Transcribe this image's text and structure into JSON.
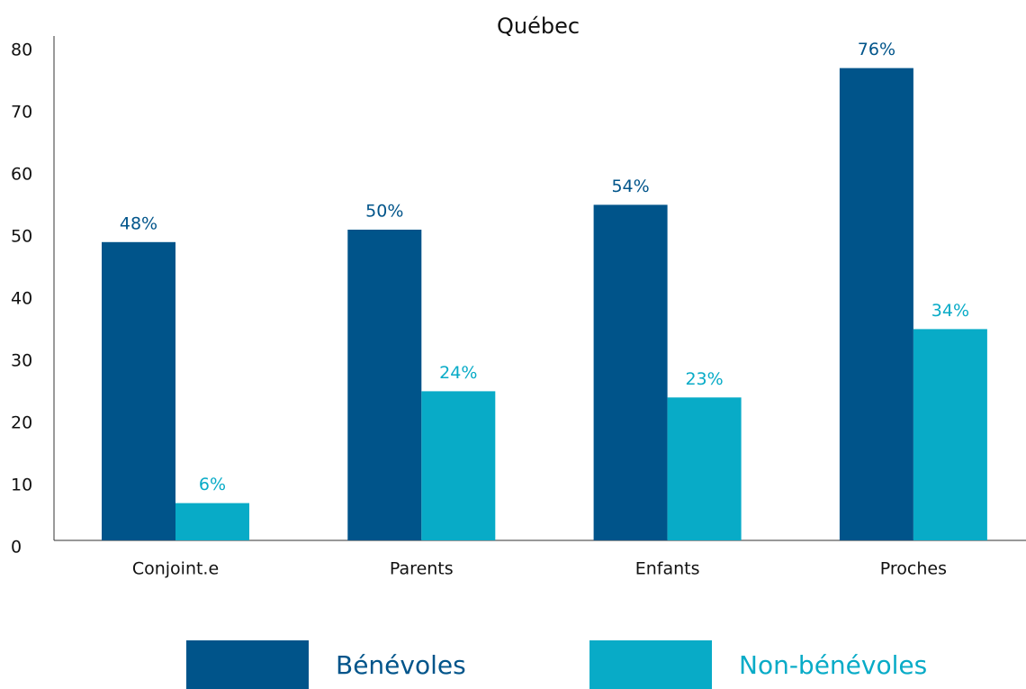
{
  "chart_data": {
    "type": "bar",
    "title": "Québec",
    "categories": [
      "Conjoint.e",
      "Parents",
      "Enfants",
      "Proches"
    ],
    "series": [
      {
        "name": "Bénévoles",
        "color": "#00548a",
        "values": [
          48,
          50,
          54,
          76
        ],
        "value_labels": [
          "48%",
          "50%",
          "54%",
          "76%"
        ]
      },
      {
        "name": "Non-bénévoles",
        "color": "#08abc7",
        "values": [
          6,
          24,
          23,
          34
        ],
        "value_labels": [
          "6%",
          "24%",
          "23%",
          "34%"
        ]
      }
    ],
    "ylim": [
      0,
      80
    ],
    "yticks": [
      0,
      10,
      20,
      30,
      40,
      50,
      60,
      70,
      80
    ],
    "grid": false,
    "legend": "bottom"
  }
}
